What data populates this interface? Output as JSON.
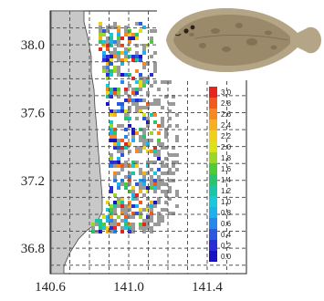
{
  "map": {
    "x_axis": {
      "ticks": [
        {
          "value": 140.6,
          "label": "140.6"
        },
        {
          "value": 141.0,
          "label": "141.0"
        },
        {
          "value": 141.4,
          "label": "141.4"
        }
      ],
      "range": [
        140.6,
        141.6
      ]
    },
    "y_axis": {
      "ticks": [
        {
          "value": 38.0,
          "label": "38.0"
        },
        {
          "value": 37.6,
          "label": "37.6"
        },
        {
          "value": 37.2,
          "label": "37.2"
        },
        {
          "value": 36.8,
          "label": "36.8"
        }
      ],
      "range": [
        36.65,
        38.2
      ]
    },
    "grid": "dashed",
    "land_color": "#c8c8c8",
    "sea_color": "#ffffff",
    "no_data_color": "#9a9a9a"
  },
  "colorbar": {
    "labels": [
      "3.0",
      "2.8",
      "2.6",
      "2.4",
      "2.2",
      "2.0",
      "1.8",
      "1.6",
      "1.4",
      "1.2",
      "1.0",
      "0.8",
      "0.6",
      "0.4",
      "0.2",
      "0.0"
    ],
    "colors": [
      "#e8241e",
      "#f05a1c",
      "#f68a22",
      "#f6b21e",
      "#efd01c",
      "#d8e31c",
      "#9bd62a",
      "#4fca3a",
      "#2bc36e",
      "#1dc5a8",
      "#1bc8d9",
      "#1fb0ee",
      "#2a86ec",
      "#2e57e0",
      "#2a2dd6",
      "#1a10c4"
    ]
  },
  "photo": {
    "icon": "flatfish-photo",
    "body_color": "#9a8a6a",
    "fin_color": "#b3a585"
  }
}
